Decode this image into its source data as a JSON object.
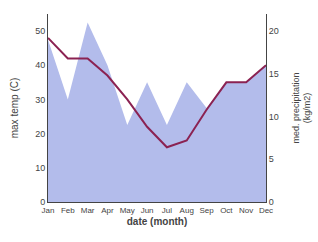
{
  "chart_data": {
    "type": "line",
    "categories": [
      "Jan",
      "Feb",
      "Mar",
      "Apr",
      "May",
      "Jun",
      "Jul",
      "Aug",
      "Sep",
      "Oct",
      "Nov",
      "Dec"
    ],
    "series": [
      {
        "type": "area",
        "color": "#b3bceb",
        "axis": "y2",
        "values": [
          19,
          12,
          21,
          16,
          9,
          14,
          9,
          14,
          11,
          14,
          14,
          16
        ]
      },
      {
        "type": "line",
        "color": "#8b2252",
        "values": [
          48,
          42,
          42,
          37,
          30,
          22,
          16,
          18,
          27,
          35,
          35,
          40
        ]
      }
    ],
    "xlabel": "date (month)",
    "ylabel": "max temp (C)",
    "y2label": "med. precipitation\n(kg/m2)",
    "ylim": [
      0,
      55
    ],
    "yticks": [
      0,
      10,
      20,
      30,
      40,
      50
    ],
    "y2lim": [
      0,
      22
    ],
    "y2ticks": [
      0,
      5,
      10,
      15,
      20
    ],
    "grid": false
  }
}
